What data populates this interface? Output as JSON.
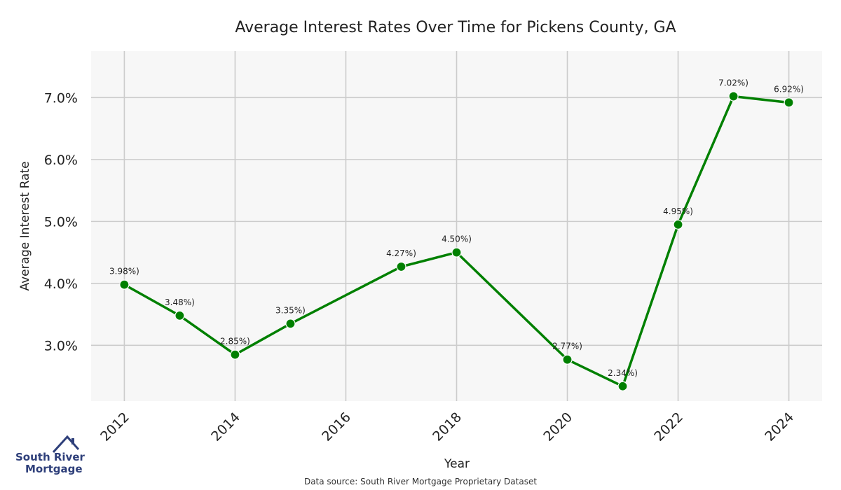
{
  "chart_data": {
    "type": "line",
    "title": "Average Interest Rates Over Time for Pickens County, GA",
    "xlabel": "Year",
    "ylabel": "Average Interest Rate",
    "x": [
      2012,
      2013,
      2014,
      2015,
      2017,
      2018,
      2020,
      2021,
      2022,
      2023,
      2024
    ],
    "series": [
      {
        "values": [
          3.98,
          3.48,
          2.85,
          3.35,
          4.27,
          4.5,
          2.77,
          2.34,
          4.95,
          7.02,
          6.92
        ],
        "data_labels": [
          "3.98%)",
          "3.48%)",
          "2.85%)",
          "3.35%)",
          "4.27%)",
          "4.50%)",
          "2.77%)",
          "2.34%)",
          "4.95%)",
          "7.02%)",
          "6.92%)"
        ],
        "color": "#008000"
      }
    ],
    "xticks": [
      2012,
      2014,
      2016,
      2018,
      2020,
      2022,
      2024
    ],
    "xtick_labels": [
      "2012",
      "2014",
      "2016",
      "2018",
      "2020",
      "2022",
      "2024"
    ],
    "yticks": [
      3.0,
      4.0,
      5.0,
      6.0,
      7.0
    ],
    "ytick_labels": [
      "3.0%",
      "4.0%",
      "5.0%",
      "6.0%",
      "7.0%"
    ],
    "xlim": [
      2011.4,
      2024.6
    ],
    "ylim": [
      2.1,
      7.75
    ],
    "grid": true,
    "background": "#f7f7f7",
    "grid_color": "#cccccc"
  },
  "footer": {
    "source": "Data source: South River Mortgage Proprietary Dataset"
  },
  "logo": {
    "line1": "South River",
    "line2": "Mortgage",
    "color": "#2e3f7a"
  }
}
